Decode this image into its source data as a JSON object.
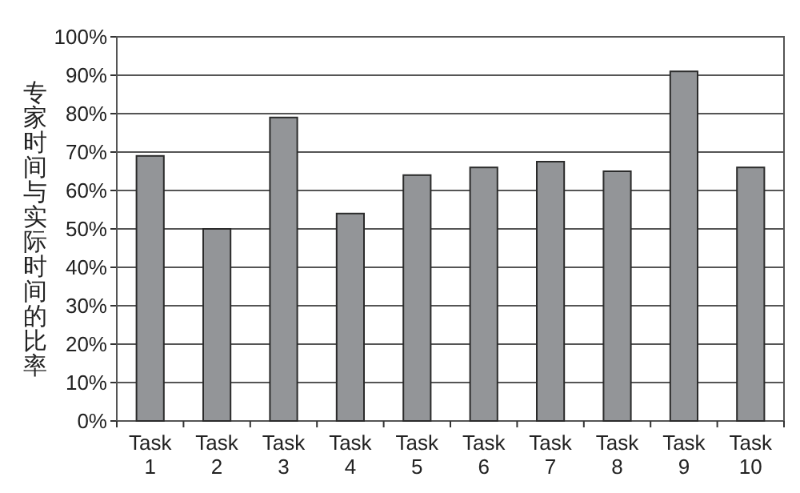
{
  "chart_data": {
    "type": "bar",
    "ylabel": "专家时间与实际时间的比率",
    "categories": [
      "Task 1",
      "Task 2",
      "Task 3",
      "Task 4",
      "Task 5",
      "Task 6",
      "Task 7",
      "Task 8",
      "Task 9",
      "Task 10"
    ],
    "values": [
      69,
      50,
      79,
      54,
      64,
      66,
      67.5,
      65,
      91,
      66
    ],
    "color": "#939598",
    "ylim": [
      0,
      100
    ],
    "yticks": [
      {
        "value": 0,
        "label": "0%"
      },
      {
        "value": 10,
        "label": "10%"
      },
      {
        "value": 20,
        "label": "20%"
      },
      {
        "value": 30,
        "label": "30%"
      },
      {
        "value": 40,
        "label": "40%"
      },
      {
        "value": 50,
        "label": "50%"
      },
      {
        "value": 60,
        "label": "60%"
      },
      {
        "value": 70,
        "label": "70%"
      },
      {
        "value": 80,
        "label": "80%"
      },
      {
        "value": 90,
        "label": "90%"
      },
      {
        "value": 100,
        "label": "100%"
      }
    ],
    "grid": "y"
  }
}
